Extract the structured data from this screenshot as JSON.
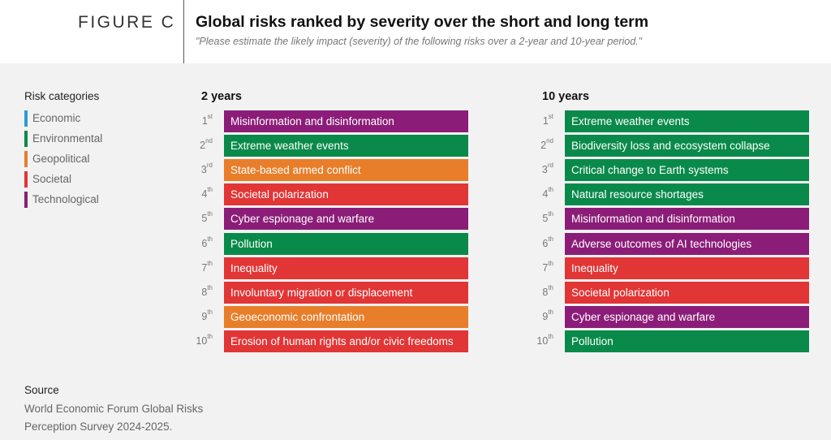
{
  "header": {
    "figure_label": "FIGURE C",
    "title": "Global risks ranked by severity over the short and long term",
    "subtitle": "\"Please estimate the likely impact (severity) of the following risks over a 2-year and 10-year period.\""
  },
  "legend": {
    "title": "Risk categories",
    "items": [
      {
        "label": "Economic",
        "color": "#2d9ad8"
      },
      {
        "label": "Environmental",
        "color": "#0a8a4a"
      },
      {
        "label": "Geopolitical",
        "color": "#e87e2a"
      },
      {
        "label": "Societal",
        "color": "#e23535"
      },
      {
        "label": "Technological",
        "color": "#8b1d78"
      }
    ]
  },
  "chart_data": {
    "type": "table",
    "panels": [
      {
        "title": "2 years",
        "rows": [
          {
            "rank": "1",
            "suffix": "st",
            "label": "Misinformation and disinformation",
            "category": "Technological"
          },
          {
            "rank": "2",
            "suffix": "nd",
            "label": "Extreme weather events",
            "category": "Environmental"
          },
          {
            "rank": "3",
            "suffix": "rd",
            "label": "State-based armed conflict",
            "category": "Geopolitical"
          },
          {
            "rank": "4",
            "suffix": "th",
            "label": "Societal polarization",
            "category": "Societal"
          },
          {
            "rank": "5",
            "suffix": "th",
            "label": "Cyber espionage and warfare",
            "category": "Technological"
          },
          {
            "rank": "6",
            "suffix": "th",
            "label": "Pollution",
            "category": "Environmental"
          },
          {
            "rank": "7",
            "suffix": "th",
            "label": "Inequality",
            "category": "Societal"
          },
          {
            "rank": "8",
            "suffix": "th",
            "label": "Involuntary migration or displacement",
            "category": "Societal"
          },
          {
            "rank": "9",
            "suffix": "th",
            "label": "Geoeconomic confrontation",
            "category": "Geopolitical"
          },
          {
            "rank": "10",
            "suffix": "th",
            "label": "Erosion of human rights and/or civic freedoms",
            "category": "Societal"
          }
        ]
      },
      {
        "title": "10 years",
        "rows": [
          {
            "rank": "1",
            "suffix": "st",
            "label": "Extreme weather events",
            "category": "Environmental"
          },
          {
            "rank": "2",
            "suffix": "nd",
            "label": "Biodiversity loss and ecosystem collapse",
            "category": "Environmental"
          },
          {
            "rank": "3",
            "suffix": "rd",
            "label": "Critical change to Earth systems",
            "category": "Environmental"
          },
          {
            "rank": "4",
            "suffix": "th",
            "label": "Natural resource shortages",
            "category": "Environmental"
          },
          {
            "rank": "5",
            "suffix": "th",
            "label": "Misinformation and disinformation",
            "category": "Technological"
          },
          {
            "rank": "6",
            "suffix": "th",
            "label": "Adverse outcomes of AI technologies",
            "category": "Technological"
          },
          {
            "rank": "7",
            "suffix": "th",
            "label": "Inequality",
            "category": "Societal"
          },
          {
            "rank": "8",
            "suffix": "th",
            "label": "Societal polarization",
            "category": "Societal"
          },
          {
            "rank": "9",
            "suffix": "th",
            "label": "Cyber espionage and warfare",
            "category": "Technological"
          },
          {
            "rank": "10",
            "suffix": "th",
            "label": "Pollution",
            "category": "Environmental"
          }
        ]
      }
    ]
  },
  "source": {
    "label": "Source",
    "text": "World Economic Forum Global Risks Perception Survey 2024-2025."
  }
}
